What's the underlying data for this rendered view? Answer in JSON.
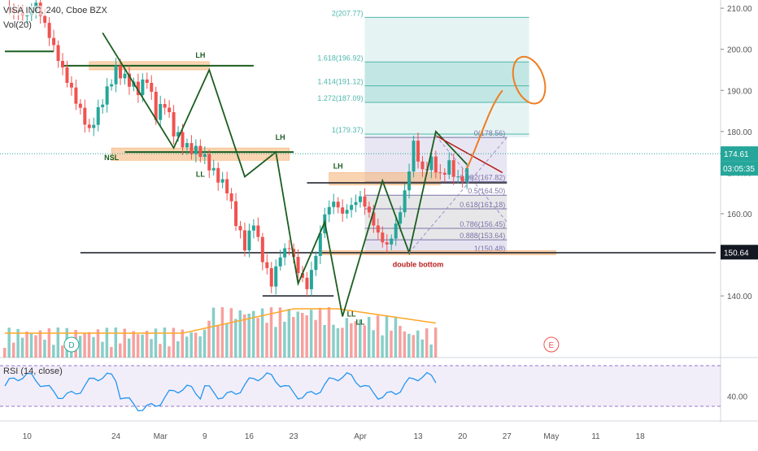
{
  "chart_data": {
    "type": "candlestick",
    "legend": {
      "symbol": "VISA INC, 240, Cboe BZX",
      "volume": "Vol(20)"
    },
    "price_axis": {
      "ticks": [
        210.0,
        200.0,
        190.0,
        180.0,
        170.0,
        160.0,
        150.0,
        140.0
      ],
      "ylim": [
        125,
        212
      ]
    },
    "rsi": {
      "label": "RSI (14, close)",
      "ticks": [
        40.0
      ],
      "band": [
        30,
        70
      ]
    },
    "time_axis": {
      "labels": [
        "10",
        "24",
        "Mar",
        "9",
        "16",
        "23",
        "Apr",
        "13",
        "20",
        "27",
        "May",
        "11",
        "18"
      ]
    },
    "current_price": {
      "value": "174.61",
      "countdown": "03:05:35",
      "color": "#26a69a"
    },
    "marked_price": {
      "value": "150.64",
      "color": "#131722"
    },
    "colors": {
      "up": "#26a69a",
      "down": "#ef5350",
      "zone": "#f5b77e",
      "fib": "#9c8ec9",
      "trend": "#1b5e20",
      "annotation": "#ef7d22"
    },
    "close_path": [
      {
        "t": 1,
        "p": 210
      },
      {
        "t": 6,
        "p": 208
      },
      {
        "t": 8,
        "p": 211
      },
      {
        "t": 10,
        "p": 206
      },
      {
        "t": 14,
        "p": 195
      },
      {
        "t": 20,
        "p": 180
      },
      {
        "t": 26,
        "p": 195
      },
      {
        "t": 31,
        "p": 190
      },
      {
        "t": 33,
        "p": 193
      },
      {
        "t": 35,
        "p": 184
      },
      {
        "t": 37,
        "p": 187
      },
      {
        "t": 39,
        "p": 180
      },
      {
        "t": 42,
        "p": 176
      },
      {
        "t": 45,
        "p": 175
      },
      {
        "t": 48,
        "p": 170
      },
      {
        "t": 51,
        "p": 166
      },
      {
        "t": 53,
        "p": 158
      },
      {
        "t": 55,
        "p": 152
      },
      {
        "t": 57,
        "p": 158
      },
      {
        "t": 59,
        "p": 149
      },
      {
        "t": 61,
        "p": 143
      },
      {
        "t": 63,
        "p": 150
      },
      {
        "t": 65,
        "p": 152
      },
      {
        "t": 67,
        "p": 146
      },
      {
        "t": 69,
        "p": 142
      },
      {
        "t": 71,
        "p": 150
      },
      {
        "t": 73,
        "p": 160
      },
      {
        "t": 75,
        "p": 163
      },
      {
        "t": 77,
        "p": 160
      },
      {
        "t": 79,
        "p": 162
      },
      {
        "t": 81,
        "p": 164
      },
      {
        "t": 83,
        "p": 160
      },
      {
        "t": 85,
        "p": 155
      },
      {
        "t": 87,
        "p": 152
      },
      {
        "t": 89,
        "p": 157
      },
      {
        "t": 91,
        "p": 165
      },
      {
        "t": 93,
        "p": 177
      },
      {
        "t": 95,
        "p": 170
      },
      {
        "t": 97,
        "p": 173
      },
      {
        "t": 99,
        "p": 169
      },
      {
        "t": 101,
        "p": 172
      },
      {
        "t": 103,
        "p": 168
      },
      {
        "t": 105,
        "p": 170
      }
    ],
    "fibonacci": [
      {
        "ratio": "2",
        "price": "207.77"
      },
      {
        "ratio": "1.618",
        "price": "196.92"
      },
      {
        "ratio": "1.414",
        "price": "191.12"
      },
      {
        "ratio": "1.272",
        "price": "187.09"
      },
      {
        "ratio": "1",
        "price": "179.37"
      },
      {
        "ratio": "0",
        "price": "178.56"
      },
      {
        "ratio": "0.382",
        "price": "167.82"
      },
      {
        "ratio": "0.5",
        "price": "164.50"
      },
      {
        "ratio": "0.618",
        "price": "161.18"
      },
      {
        "ratio": "0.786",
        "price": "156.45"
      },
      {
        "ratio": "0.888",
        "price": "153.64"
      },
      {
        "ratio": "1",
        "price": "150.48"
      }
    ],
    "annotations": [
      {
        "text": "LH",
        "note": "lower high"
      },
      {
        "text": "NSL"
      },
      {
        "text": "LL"
      },
      {
        "text": "LH"
      },
      {
        "text": "LL"
      },
      {
        "text": "LH"
      },
      {
        "text": "LL"
      },
      {
        "text": "double bottom",
        "color": "#b71c1c"
      }
    ],
    "event_markers": [
      {
        "text": "D"
      },
      {
        "text": "E"
      }
    ]
  }
}
